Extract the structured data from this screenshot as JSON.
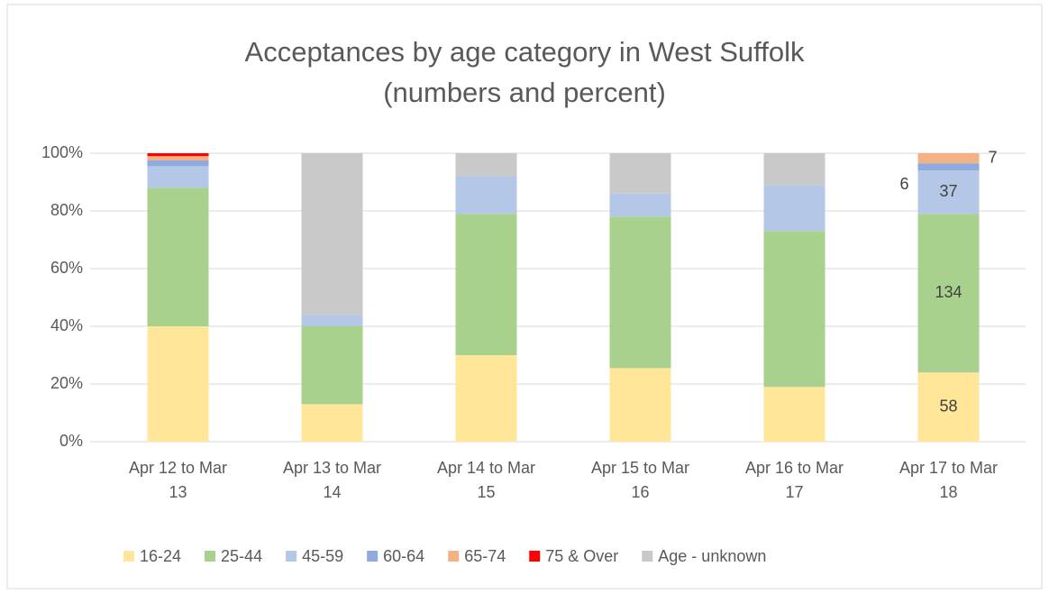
{
  "chart_data": {
    "type": "stacked_bar_percent",
    "title": "Acceptances by age category in West Suffolk",
    "subtitle": "(numbers and percent)",
    "categories": [
      "Apr 12 to Mar 13",
      "Apr 13 to Mar 14",
      "Apr 14 to Mar 15",
      "Apr 15 to Mar 16",
      "Apr 16 to Mar 17",
      "Apr 17 to Mar 18"
    ],
    "series": [
      {
        "name": "16-24",
        "color": "#ffe699",
        "values": [
          40,
          13,
          30,
          25.5,
          19,
          24
        ]
      },
      {
        "name": "25-44",
        "color": "#a9d18e",
        "values": [
          48,
          27,
          49,
          52.5,
          54,
          55
        ]
      },
      {
        "name": "45-59",
        "color": "#b4c7e7",
        "values": [
          7.5,
          4,
          13,
          8,
          16,
          15
        ]
      },
      {
        "name": "60-64",
        "color": "#8faadc",
        "values": [
          2,
          0,
          0,
          0,
          0,
          2.5
        ]
      },
      {
        "name": "65-74",
        "color": "#f4b183",
        "values": [
          1.5,
          0,
          0,
          0,
          0,
          3.5
        ]
      },
      {
        "name": "75 & Over",
        "color": "#ff0000",
        "values": [
          1,
          0,
          0,
          0,
          0,
          0
        ]
      },
      {
        "name": "Age - unknown",
        "color": "#c9c9c9",
        "values": [
          0,
          56,
          8,
          14,
          11,
          0
        ]
      }
    ],
    "annotations": [
      {
        "series": 0,
        "category": 5,
        "text": "58"
      },
      {
        "series": 1,
        "category": 5,
        "text": "134"
      },
      {
        "series": 2,
        "category": 5,
        "text": "37"
      },
      {
        "series": 3,
        "category": 5,
        "text": "6"
      },
      {
        "series": 4,
        "category": 5,
        "text": "7"
      }
    ],
    "ylim": [
      0,
      100
    ],
    "yticks": [
      {
        "value": 0,
        "label": "0%"
      },
      {
        "value": 20,
        "label": "20%"
      },
      {
        "value": 40,
        "label": "40%"
      },
      {
        "value": 60,
        "label": "60%"
      },
      {
        "value": 80,
        "label": "80%"
      },
      {
        "value": 100,
        "label": "100%"
      }
    ],
    "grid": true,
    "legend": "bottom"
  }
}
